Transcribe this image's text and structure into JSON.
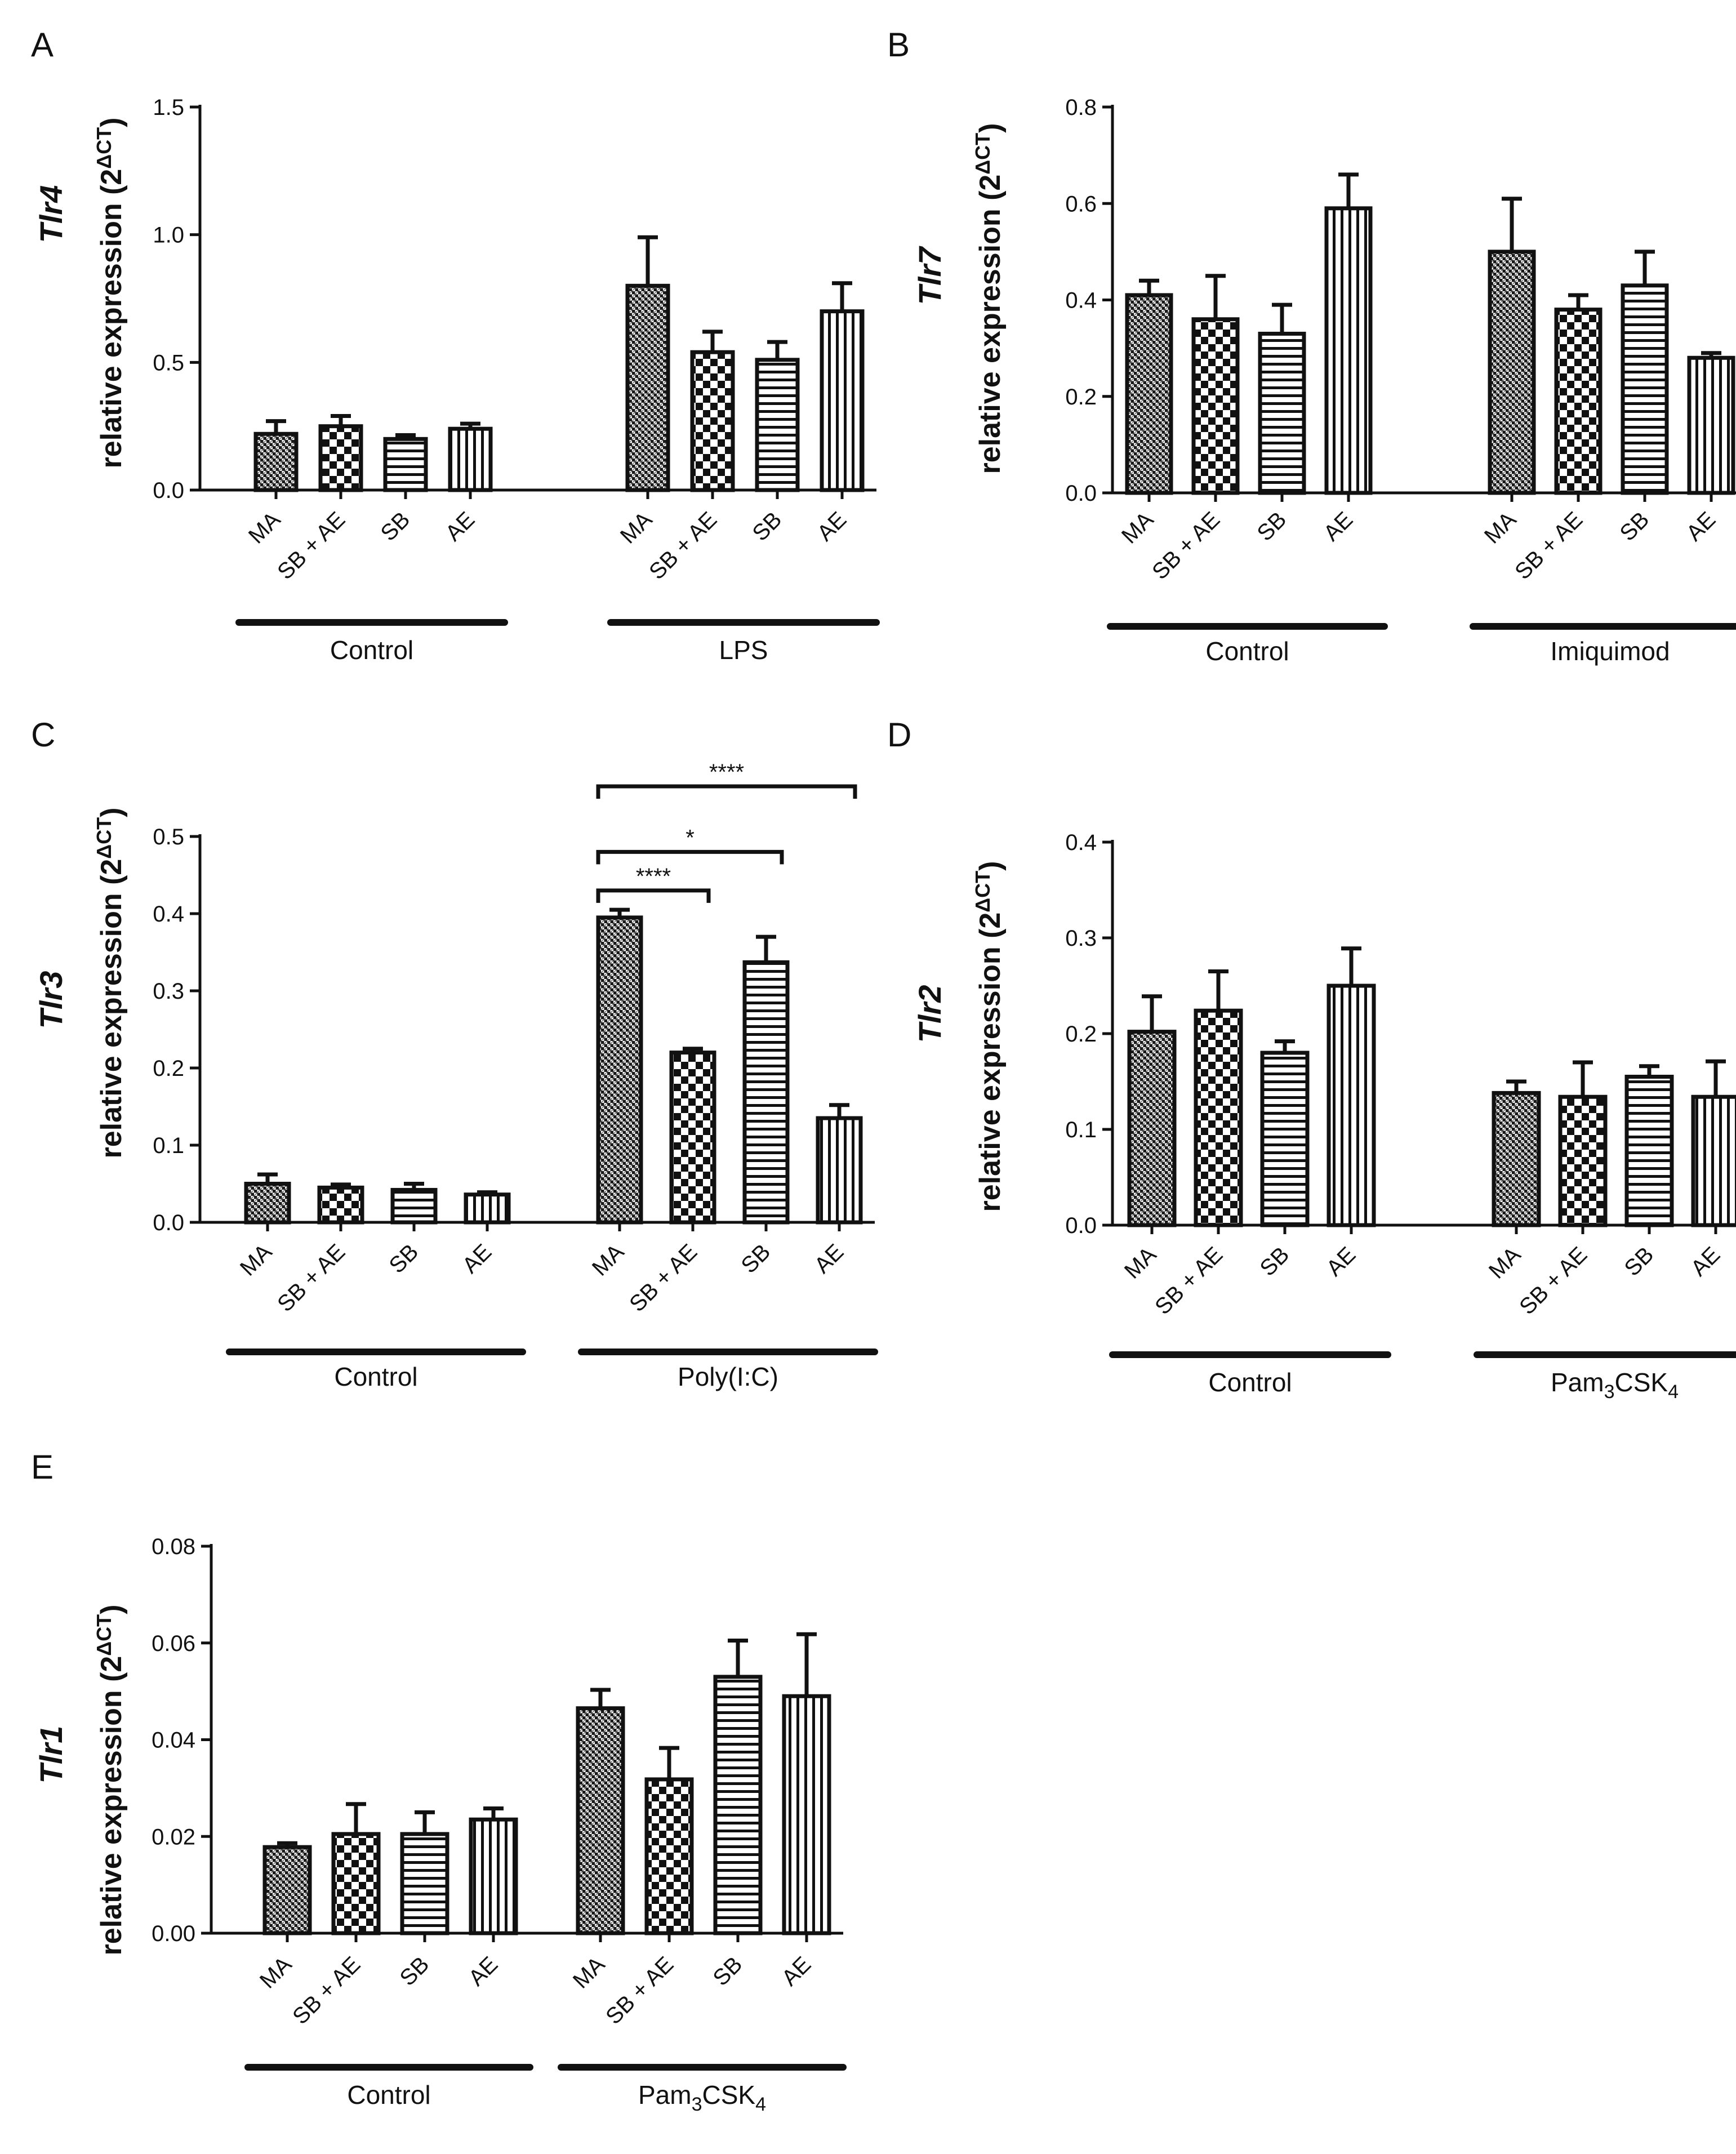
{
  "chart_data": [
    {
      "panel": "A",
      "type": "bar",
      "gene": "Tlr4",
      "ylabel": "relative expression (2",
      "ylabel_sup": "ΔCT",
      "ylabel_close": ")",
      "ylim": [
        0,
        1.5
      ],
      "yticks": [
        "0.0",
        "0.5",
        "1.0",
        "1.5"
      ],
      "ytick_values": [
        0,
        0.5,
        1.0,
        1.5
      ],
      "categories": [
        "MA",
        "SB + AE",
        "SB",
        "AE",
        "MA",
        "SB + AE",
        "SB",
        "AE"
      ],
      "patterns": [
        "dense",
        "checker",
        "hlines",
        "vlines",
        "dense",
        "checker",
        "hlines",
        "vlines"
      ],
      "values": [
        0.22,
        0.25,
        0.2,
        0.24,
        0.8,
        0.54,
        0.51,
        0.7
      ],
      "errors": [
        0.05,
        0.04,
        0.015,
        0.02,
        0.19,
        0.08,
        0.07,
        0.11
      ],
      "groups": [
        {
          "label": "Control",
          "start": 0,
          "end": 3
        },
        {
          "label": "LPS",
          "start": 4,
          "end": 7
        }
      ],
      "significance": []
    },
    {
      "panel": "B",
      "type": "bar",
      "gene": "Tlr7",
      "ylabel": "relative expression (2",
      "ylabel_sup": "ΔCT",
      "ylabel_close": ")",
      "ylim": [
        0,
        0.8
      ],
      "yticks": [
        "0.0",
        "0.2",
        "0.4",
        "0.6",
        "0.8"
      ],
      "ytick_values": [
        0,
        0.2,
        0.4,
        0.6,
        0.8
      ],
      "categories": [
        "MA",
        "SB + AE",
        "SB",
        "AE",
        "MA",
        "SB + AE",
        "SB",
        "AE"
      ],
      "patterns": [
        "dense",
        "checker",
        "hlines",
        "vlines",
        "dense",
        "checker",
        "hlines",
        "vlines"
      ],
      "values": [
        0.41,
        0.36,
        0.33,
        0.59,
        0.5,
        0.38,
        0.43,
        0.28
      ],
      "errors": [
        0.03,
        0.09,
        0.06,
        0.07,
        0.11,
        0.03,
        0.07,
        0.01
      ],
      "groups": [
        {
          "label": "Control",
          "start": 0,
          "end": 3
        },
        {
          "label": "Imiquimod",
          "start": 4,
          "end": 7
        }
      ],
      "significance": []
    },
    {
      "panel": "C",
      "type": "bar",
      "gene": "Tlr3",
      "ylabel": "relative expression (2",
      "ylabel_sup": "ΔCT",
      "ylabel_close": ")",
      "ylim": [
        0,
        0.5
      ],
      "yticks": [
        "0.0",
        "0.1",
        "0.2",
        "0.3",
        "0.4",
        "0.5"
      ],
      "ytick_values": [
        0,
        0.1,
        0.2,
        0.3,
        0.4,
        0.5
      ],
      "categories": [
        "MA",
        "SB + AE",
        "SB",
        "AE",
        "MA",
        "SB + AE",
        "SB",
        "AE"
      ],
      "patterns": [
        "dense",
        "checker",
        "hlines",
        "vlines",
        "dense",
        "checker",
        "hlines",
        "vlines"
      ],
      "values": [
        0.05,
        0.045,
        0.042,
        0.036,
        0.395,
        0.22,
        0.337,
        0.135
      ],
      "errors": [
        0.012,
        0.004,
        0.008,
        0.003,
        0.01,
        0.005,
        0.033,
        0.017
      ],
      "groups": [
        {
          "label": "Control",
          "start": 0,
          "end": 3
        },
        {
          "label": "Poly(I:C)",
          "start": 4,
          "end": 7
        }
      ],
      "significance": [
        {
          "from": 4,
          "to": 5,
          "label": "****",
          "y": 0.43
        },
        {
          "from": 4,
          "to": 6,
          "label": "*",
          "y": 0.48
        },
        {
          "from": 4,
          "to": 7,
          "label": "****",
          "y": 0.565
        }
      ]
    },
    {
      "panel": "D",
      "type": "bar",
      "gene": "Tlr2",
      "ylabel": "relative expression (2",
      "ylabel_sup": "ΔCT",
      "ylabel_close": ")",
      "ylim": [
        0,
        0.4
      ],
      "yticks": [
        "0.0",
        "0.1",
        "0.2",
        "0.3",
        "0.4"
      ],
      "ytick_values": [
        0,
        0.1,
        0.2,
        0.3,
        0.4
      ],
      "categories": [
        "MA",
        "SB + AE",
        "SB",
        "AE",
        "MA",
        "SB + AE",
        "SB",
        "AE"
      ],
      "patterns": [
        "dense",
        "checker",
        "hlines",
        "vlines",
        "dense",
        "checker",
        "hlines",
        "vlines"
      ],
      "values": [
        0.202,
        0.224,
        0.18,
        0.25,
        0.138,
        0.134,
        0.155,
        0.134
      ],
      "errors": [
        0.037,
        0.041,
        0.012,
        0.039,
        0.012,
        0.036,
        0.011,
        0.037
      ],
      "groups": [
        {
          "label": "Control",
          "start": 0,
          "end": 3
        },
        {
          "label": "Pam",
          "sub": "3",
          "label_mid": "CSK",
          "sub2": "4",
          "start": 4,
          "end": 7
        }
      ],
      "significance": []
    },
    {
      "panel": "E",
      "type": "bar",
      "gene": "Tlr1",
      "ylabel": "relative expression (2",
      "ylabel_sup": "ΔCT",
      "ylabel_close": ")",
      "ylim": [
        0,
        0.08
      ],
      "yticks": [
        "0.00",
        "0.02",
        "0.04",
        "0.06",
        "0.08"
      ],
      "ytick_values": [
        0,
        0.02,
        0.04,
        0.06,
        0.08
      ],
      "categories": [
        "MA",
        "SB + AE",
        "SB",
        "AE",
        "MA",
        "SB + AE",
        "SB",
        "AE"
      ],
      "patterns": [
        "dense",
        "checker",
        "hlines",
        "vlines",
        "dense",
        "checker",
        "hlines",
        "vlines"
      ],
      "values": [
        0.0178,
        0.0205,
        0.0205,
        0.0235,
        0.0465,
        0.0318,
        0.053,
        0.049
      ],
      "errors": [
        0.0008,
        0.0062,
        0.0045,
        0.0023,
        0.0038,
        0.0065,
        0.0075,
        0.0128
      ],
      "groups": [
        {
          "label": "Control",
          "start": 0,
          "end": 3
        },
        {
          "label": "Pam",
          "sub": "3",
          "label_mid": "CSK",
          "sub2": "4",
          "start": 4,
          "end": 7
        }
      ],
      "significance": []
    }
  ]
}
